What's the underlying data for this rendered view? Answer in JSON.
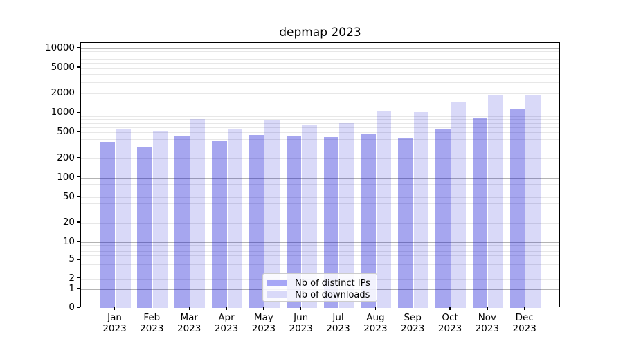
{
  "chart_data": {
    "type": "bar",
    "title": "depmap 2023",
    "categories": [
      "Jan",
      "Feb",
      "Mar",
      "Apr",
      "May",
      "Jun",
      "Jul",
      "Aug",
      "Sep",
      "Oct",
      "Nov",
      "Dec"
    ],
    "x_year_label": "2023",
    "series": [
      {
        "name": "Nb of distinct IPs",
        "color": "rgba(0,0,208,0.35)",
        "legend_color": "#a6a6f6",
        "values": [
          360,
          300,
          450,
          370,
          455,
          440,
          430,
          480,
          415,
          555,
          830,
          1130
        ]
      },
      {
        "name": "Nb of downloads",
        "color": "rgba(0,0,208,0.15)",
        "legend_color": "#d9d9f9",
        "values": [
          555,
          515,
          810,
          560,
          775,
          655,
          695,
          1050,
          1025,
          1480,
          1890,
          1910
        ]
      }
    ],
    "xlabel": "",
    "ylabel": "",
    "yscale": "symlog",
    "y_ticks": [
      10000,
      5000,
      2000,
      1000,
      500,
      200,
      100,
      50,
      20,
      10,
      5,
      2,
      1,
      0
    ],
    "ylim": [
      0,
      12000
    ],
    "grid": true,
    "legend_position": "lower center",
    "major_grid_color": "#b3b3b3",
    "minor_grid_color": "#e7e7e7",
    "y_anchor_fracs": {
      "0": 0,
      "1": 0.0713,
      "2": 0.1104,
      "5": 0.182,
      "10": 0.248
    },
    "frac_per_decade": 0.2437
  }
}
